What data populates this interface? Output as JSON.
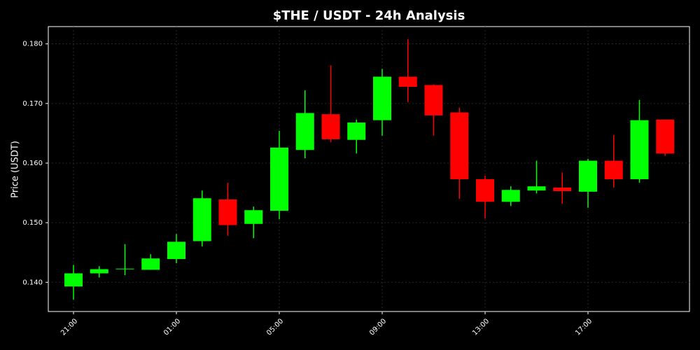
{
  "chart_data": {
    "type": "candlestick",
    "title": "$THE / USDT - 24h Analysis",
    "y_label": "Price (USDT)",
    "categories": [
      "21:00",
      null,
      null,
      null,
      "01:00",
      null,
      null,
      null,
      "05:00",
      null,
      null,
      null,
      "09:00",
      null,
      null,
      null,
      "13:00",
      null,
      null,
      null,
      "17:00",
      null,
      null,
      null
    ],
    "open": [
      0.1393,
      0.1415,
      0.1422,
      0.1421,
      0.1439,
      0.1469,
      0.1539,
      0.1498,
      0.152,
      0.1622,
      0.1682,
      0.1639,
      0.1672,
      0.1745,
      0.1731,
      0.1685,
      0.1573,
      0.1535,
      0.1554,
      0.1559,
      0.1552,
      0.1604,
      0.1573,
      0.1673
    ],
    "high": [
      0.1429,
      0.1427,
      0.1464,
      0.1447,
      0.1481,
      0.1554,
      0.1567,
      0.1527,
      0.1654,
      0.1722,
      0.1764,
      0.1673,
      0.1758,
      0.1808,
      0.1732,
      0.1693,
      0.1579,
      0.1561,
      0.1604,
      0.1584,
      0.1607,
      0.1647,
      0.1706,
      0.1673
    ],
    "low": [
      0.1371,
      0.1408,
      0.1412,
      0.1421,
      0.1432,
      0.146,
      0.1478,
      0.1474,
      0.1506,
      0.1608,
      0.1635,
      0.1616,
      0.1646,
      0.1702,
      0.1646,
      0.154,
      0.1507,
      0.1528,
      0.1549,
      0.1532,
      0.1525,
      0.1559,
      0.1567,
      0.1612
    ],
    "close": [
      0.1415,
      0.1422,
      0.1423,
      0.144,
      0.1468,
      0.1541,
      0.1496,
      0.1521,
      0.1626,
      0.1684,
      0.164,
      0.1668,
      0.1745,
      0.1728,
      0.168,
      0.1573,
      0.1535,
      0.1555,
      0.1561,
      0.1553,
      0.1604,
      0.1573,
      0.1672,
      0.1616
    ],
    "up_color": "#00ff00",
    "down_color": "#ff0000",
    "ylim": [
      0.1351,
      0.1829
    ],
    "yticks": [
      {
        "value": 0.14,
        "label": "0.140"
      },
      {
        "value": 0.15,
        "label": "0.150"
      },
      {
        "value": 0.16,
        "label": "0.160"
      },
      {
        "value": 0.17,
        "label": "0.170"
      },
      {
        "value": 0.18,
        "label": "0.180"
      }
    ],
    "grid": true
  }
}
